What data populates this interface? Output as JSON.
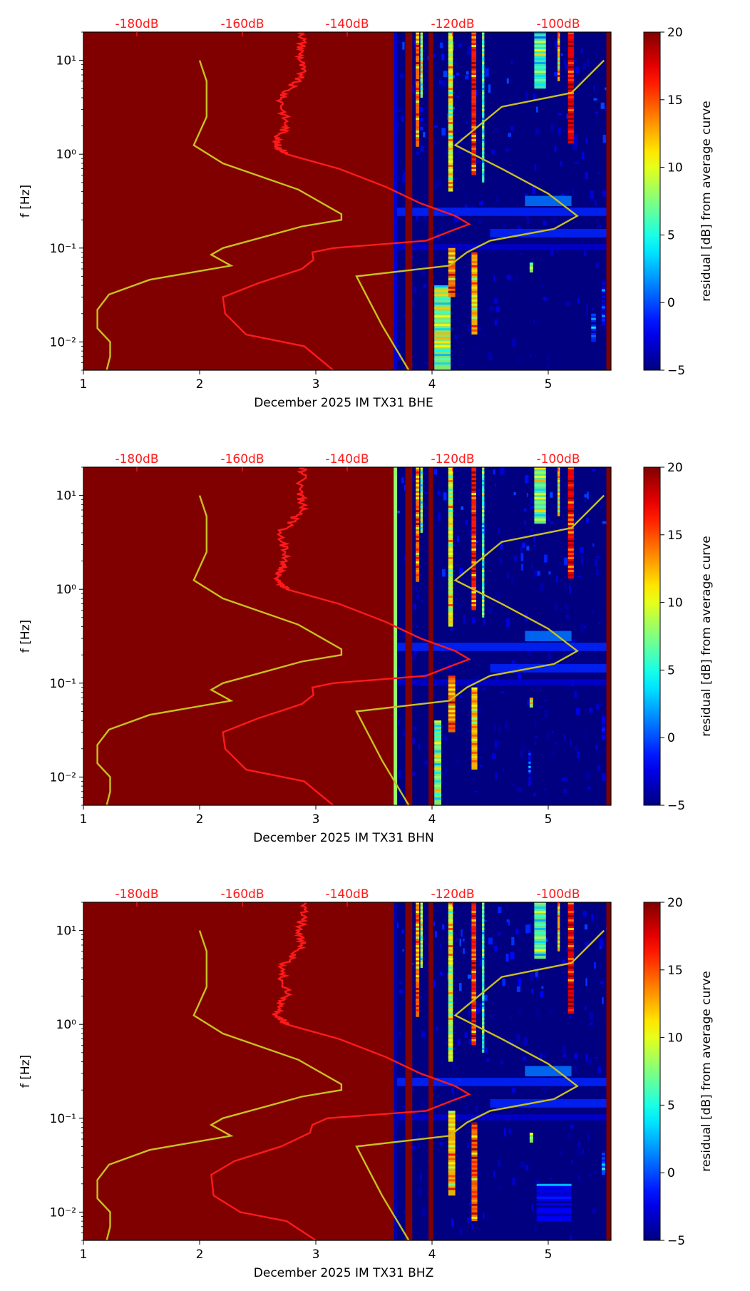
{
  "chart_data": [
    {
      "type": "heatmap",
      "xlabel": "December 2025 IM TX31  BHE",
      "ylabel": "f [Hz]",
      "x_ticks": [
        "1",
        "2",
        "3",
        "4",
        "5"
      ],
      "y_ticks": [
        "10^-2",
        "10^-1",
        "10^0",
        "10^1"
      ],
      "top_ticks": [
        "-180dB",
        "-160dB",
        "-140dB",
        "-120dB",
        "-100dB"
      ],
      "colorbar": {
        "label": "residual [dB] from average curve",
        "ticks": [
          "20",
          "15",
          "10",
          "5",
          "0",
          "−5"
        ],
        "range": [
          -5,
          20
        ]
      },
      "xlim": [
        1,
        5.54
      ],
      "ylim": [
        0.005,
        20
      ],
      "yscale": "log",
      "saturated_until_day": 3.67,
      "yellow_curve": [
        [
          2.0,
          10
        ],
        [
          2.06,
          6
        ],
        [
          2.06,
          2.5
        ],
        [
          1.95,
          1.25
        ],
        [
          2.2,
          0.8
        ],
        [
          2.85,
          0.42
        ],
        [
          3.22,
          0.23
        ],
        [
          3.22,
          0.2
        ],
        [
          2.88,
          0.17
        ],
        [
          2.2,
          0.1
        ],
        [
          2.1,
          0.085
        ],
        [
          2.27,
          0.065
        ],
        [
          1.57,
          0.046
        ],
        [
          1.22,
          0.032
        ],
        [
          1.12,
          0.022
        ],
        [
          1.12,
          0.014
        ],
        [
          1.23,
          0.01
        ],
        [
          1.23,
          0.007
        ],
        [
          1.2,
          0.005
        ]
      ],
      "yellow_curve_right": [
        [
          5.48,
          10
        ],
        [
          5.2,
          4.5
        ],
        [
          4.6,
          3.2
        ],
        [
          4.2,
          1.25
        ],
        [
          4.6,
          0.7
        ],
        [
          5.0,
          0.38
        ],
        [
          5.25,
          0.22
        ],
        [
          5.05,
          0.16
        ],
        [
          4.5,
          0.12
        ],
        [
          4.3,
          0.09
        ],
        [
          4.15,
          0.065
        ],
        [
          3.35,
          0.05
        ],
        [
          3.57,
          0.015
        ],
        [
          3.8,
          0.005
        ]
      ],
      "red_curve": [
        [
          2.9,
          20
        ],
        [
          2.87,
          12
        ],
        [
          2.88,
          7
        ],
        [
          2.7,
          4
        ],
        [
          2.75,
          2
        ],
        [
          2.65,
          1.3
        ],
        [
          2.75,
          1.0
        ],
        [
          3.2,
          0.7
        ],
        [
          3.6,
          0.45
        ],
        [
          3.9,
          0.3
        ],
        [
          4.2,
          0.22
        ],
        [
          4.32,
          0.18
        ],
        [
          4.15,
          0.15
        ],
        [
          3.95,
          0.12
        ],
        [
          3.15,
          0.1
        ],
        [
          2.97,
          0.09
        ],
        [
          2.98,
          0.075
        ],
        [
          2.88,
          0.06
        ],
        [
          2.5,
          0.042
        ],
        [
          2.2,
          0.03
        ],
        [
          2.22,
          0.02
        ],
        [
          2.4,
          0.012
        ],
        [
          2.9,
          0.009
        ],
        [
          3.15,
          0.005
        ]
      ],
      "bands": [
        {
          "x0": 3.77,
          "x1": 3.83,
          "value": 20
        },
        {
          "x0": 3.97,
          "x1": 4.01,
          "value": 20
        },
        {
          "x0": 5.5,
          "x1": 5.54,
          "value": 20
        },
        {
          "x0": 3.67,
          "x1": 3.7,
          "value": -3
        }
      ],
      "streaks": [
        {
          "x0": 3.86,
          "x1": 3.89,
          "f0": 1.2,
          "f1": 20,
          "value": 14
        },
        {
          "x0": 3.9,
          "x1": 3.92,
          "f0": 4,
          "f1": 20,
          "value": 8
        },
        {
          "x0": 4.14,
          "x1": 4.18,
          "f0": 0.4,
          "f1": 20,
          "value": 10
        },
        {
          "x0": 4.34,
          "x1": 4.38,
          "f0": 0.6,
          "f1": 20,
          "value": 16
        },
        {
          "x0": 4.43,
          "x1": 4.45,
          "f0": 0.5,
          "f1": 20,
          "value": 6
        },
        {
          "x0": 4.88,
          "x1": 4.98,
          "f0": 5,
          "f1": 20,
          "value": 6
        },
        {
          "x0": 5.08,
          "x1": 5.1,
          "f0": 6,
          "f1": 20,
          "value": 12
        },
        {
          "x0": 5.17,
          "x1": 5.22,
          "f0": 1.3,
          "f1": 20,
          "value": 17
        },
        {
          "x0": 4.02,
          "x1": 4.16,
          "f0": 0.005,
          "f1": 0.04,
          "value": 8
        },
        {
          "x0": 4.14,
          "x1": 4.2,
          "f0": 0.03,
          "f1": 0.1,
          "value": 14
        },
        {
          "x0": 4.34,
          "x1": 4.39,
          "f0": 0.012,
          "f1": 0.09,
          "value": 12
        },
        {
          "x0": 4.84,
          "x1": 4.87,
          "f0": 0.055,
          "f1": 0.07,
          "value": 8
        },
        {
          "x0": 5.37,
          "x1": 5.41,
          "f0": 0.01,
          "f1": 0.02,
          "value": -1
        },
        {
          "x0": 5.46,
          "x1": 5.49,
          "f0": 0.015,
          "f1": 0.045,
          "value": -2
        }
      ],
      "hbands": [
        {
          "x0": 3.67,
          "x1": 5.54,
          "f0": 0.22,
          "f1": 0.27,
          "value": -1
        },
        {
          "x0": 4.5,
          "x1": 5.54,
          "f0": 0.13,
          "f1": 0.16,
          "value": -1
        },
        {
          "x0": 3.67,
          "x1": 5.54,
          "f0": 0.095,
          "f1": 0.11,
          "value": -3
        },
        {
          "x0": 4.8,
          "x1": 5.2,
          "f0": 0.28,
          "f1": 0.36,
          "value": 1
        }
      ]
    },
    {
      "type": "heatmap",
      "xlabel": "December 2025 IM TX31  BHN",
      "ylabel": "f [Hz]",
      "x_ticks": [
        "1",
        "2",
        "3",
        "4",
        "5"
      ],
      "y_ticks": [
        "10^-2",
        "10^-1",
        "10^0",
        "10^1"
      ],
      "top_ticks": [
        "-180dB",
        "-160dB",
        "-140dB",
        "-120dB",
        "-100dB"
      ],
      "colorbar": {
        "label": "residual [dB] from average curve",
        "ticks": [
          "20",
          "15",
          "10",
          "5",
          "0",
          "−5"
        ],
        "range": [
          -5,
          20
        ]
      },
      "xlim": [
        1,
        5.54
      ],
      "ylim": [
        0.005,
        20
      ],
      "yscale": "log",
      "saturated_until_day": 3.67,
      "yellow_curve": [
        [
          2.0,
          10
        ],
        [
          2.06,
          6
        ],
        [
          2.06,
          2.5
        ],
        [
          1.95,
          1.25
        ],
        [
          2.2,
          0.8
        ],
        [
          2.85,
          0.42
        ],
        [
          3.22,
          0.23
        ],
        [
          3.22,
          0.2
        ],
        [
          2.88,
          0.17
        ],
        [
          2.2,
          0.1
        ],
        [
          2.1,
          0.085
        ],
        [
          2.27,
          0.065
        ],
        [
          1.57,
          0.046
        ],
        [
          1.22,
          0.032
        ],
        [
          1.12,
          0.022
        ],
        [
          1.12,
          0.014
        ],
        [
          1.23,
          0.01
        ],
        [
          1.23,
          0.007
        ],
        [
          1.2,
          0.005
        ]
      ],
      "yellow_curve_right": [
        [
          5.48,
          10
        ],
        [
          5.2,
          4.5
        ],
        [
          4.6,
          3.2
        ],
        [
          4.2,
          1.25
        ],
        [
          4.6,
          0.7
        ],
        [
          5.0,
          0.38
        ],
        [
          5.25,
          0.22
        ],
        [
          5.05,
          0.16
        ],
        [
          4.5,
          0.12
        ],
        [
          4.3,
          0.09
        ],
        [
          4.15,
          0.065
        ],
        [
          3.35,
          0.05
        ],
        [
          3.57,
          0.015
        ],
        [
          3.8,
          0.005
        ]
      ],
      "red_curve": [
        [
          2.9,
          20
        ],
        [
          2.87,
          12
        ],
        [
          2.88,
          7
        ],
        [
          2.7,
          4
        ],
        [
          2.75,
          2
        ],
        [
          2.65,
          1.3
        ],
        [
          2.75,
          1.0
        ],
        [
          3.2,
          0.7
        ],
        [
          3.6,
          0.45
        ],
        [
          3.9,
          0.3
        ],
        [
          4.2,
          0.22
        ],
        [
          4.32,
          0.18
        ],
        [
          4.15,
          0.15
        ],
        [
          3.95,
          0.12
        ],
        [
          3.15,
          0.1
        ],
        [
          2.97,
          0.09
        ],
        [
          2.98,
          0.075
        ],
        [
          2.88,
          0.06
        ],
        [
          2.5,
          0.042
        ],
        [
          2.2,
          0.03
        ],
        [
          2.22,
          0.02
        ],
        [
          2.4,
          0.012
        ],
        [
          2.9,
          0.009
        ],
        [
          3.15,
          0.005
        ]
      ],
      "bands": [
        {
          "x0": 3.77,
          "x1": 3.83,
          "value": 20
        },
        {
          "x0": 3.97,
          "x1": 4.01,
          "value": 20
        },
        {
          "x0": 5.5,
          "x1": 5.54,
          "value": 20
        },
        {
          "x0": 3.67,
          "x1": 3.7,
          "value": 8
        }
      ],
      "streaks": [
        {
          "x0": 3.86,
          "x1": 3.89,
          "f0": 1.2,
          "f1": 20,
          "value": 14
        },
        {
          "x0": 3.9,
          "x1": 3.92,
          "f0": 4,
          "f1": 20,
          "value": 8
        },
        {
          "x0": 4.14,
          "x1": 4.18,
          "f0": 0.4,
          "f1": 20,
          "value": 10
        },
        {
          "x0": 4.34,
          "x1": 4.38,
          "f0": 0.6,
          "f1": 20,
          "value": 16
        },
        {
          "x0": 4.43,
          "x1": 4.45,
          "f0": 0.5,
          "f1": 20,
          "value": 6
        },
        {
          "x0": 4.88,
          "x1": 4.98,
          "f0": 5,
          "f1": 20,
          "value": 7
        },
        {
          "x0": 5.08,
          "x1": 5.1,
          "f0": 6,
          "f1": 20,
          "value": 12
        },
        {
          "x0": 5.17,
          "x1": 5.22,
          "f0": 1.3,
          "f1": 20,
          "value": 17
        },
        {
          "x0": 4.02,
          "x1": 4.08,
          "f0": 0.005,
          "f1": 0.04,
          "value": 8
        },
        {
          "x0": 4.14,
          "x1": 4.2,
          "f0": 0.03,
          "f1": 0.12,
          "value": 14
        },
        {
          "x0": 4.34,
          "x1": 4.39,
          "f0": 0.012,
          "f1": 0.09,
          "value": 12
        },
        {
          "x0": 4.84,
          "x1": 4.87,
          "f0": 0.055,
          "f1": 0.07,
          "value": 8
        },
        {
          "x0": 4.83,
          "x1": 4.85,
          "f0": 0.008,
          "f1": 0.02,
          "value": -2
        },
        {
          "x0": 5.46,
          "x1": 5.49,
          "f0": 0.025,
          "f1": 0.045,
          "value": -2
        }
      ],
      "hbands": [
        {
          "x0": 3.67,
          "x1": 5.54,
          "f0": 0.22,
          "f1": 0.27,
          "value": -1
        },
        {
          "x0": 4.5,
          "x1": 5.54,
          "f0": 0.13,
          "f1": 0.16,
          "value": -1
        },
        {
          "x0": 3.67,
          "x1": 5.54,
          "f0": 0.095,
          "f1": 0.11,
          "value": -3
        },
        {
          "x0": 4.8,
          "x1": 5.2,
          "f0": 0.28,
          "f1": 0.36,
          "value": 1
        }
      ]
    },
    {
      "type": "heatmap",
      "xlabel": "December 2025 IM TX31  BHZ",
      "ylabel": "f [Hz]",
      "x_ticks": [
        "1",
        "2",
        "3",
        "4",
        "5"
      ],
      "y_ticks": [
        "10^-2",
        "10^-1",
        "10^0",
        "10^1"
      ],
      "top_ticks": [
        "-180dB",
        "-160dB",
        "-140dB",
        "-120dB",
        "-100dB"
      ],
      "colorbar": {
        "label": "residual [dB] from average curve",
        "ticks": [
          "20",
          "15",
          "10",
          "5",
          "0",
          "−5"
        ],
        "range": [
          -5,
          20
        ]
      },
      "xlim": [
        1,
        5.54
      ],
      "ylim": [
        0.005,
        20
      ],
      "yscale": "log",
      "saturated_until_day": 3.67,
      "yellow_curve": [
        [
          2.0,
          10
        ],
        [
          2.06,
          6
        ],
        [
          2.06,
          2.5
        ],
        [
          1.95,
          1.25
        ],
        [
          2.2,
          0.8
        ],
        [
          2.85,
          0.42
        ],
        [
          3.22,
          0.23
        ],
        [
          3.22,
          0.2
        ],
        [
          2.88,
          0.17
        ],
        [
          2.2,
          0.1
        ],
        [
          2.1,
          0.085
        ],
        [
          2.27,
          0.065
        ],
        [
          1.57,
          0.046
        ],
        [
          1.22,
          0.032
        ],
        [
          1.12,
          0.022
        ],
        [
          1.12,
          0.014
        ],
        [
          1.23,
          0.01
        ],
        [
          1.23,
          0.007
        ],
        [
          1.2,
          0.005
        ]
      ],
      "yellow_curve_right": [
        [
          5.48,
          10
        ],
        [
          5.2,
          4.5
        ],
        [
          4.6,
          3.2
        ],
        [
          4.2,
          1.25
        ],
        [
          4.6,
          0.7
        ],
        [
          5.0,
          0.38
        ],
        [
          5.25,
          0.22
        ],
        [
          5.05,
          0.16
        ],
        [
          4.5,
          0.12
        ],
        [
          4.3,
          0.09
        ],
        [
          4.15,
          0.065
        ],
        [
          3.35,
          0.05
        ],
        [
          3.57,
          0.015
        ],
        [
          3.8,
          0.005
        ]
      ],
      "red_curve": [
        [
          2.9,
          20
        ],
        [
          2.87,
          12
        ],
        [
          2.88,
          7
        ],
        [
          2.7,
          4
        ],
        [
          2.75,
          2
        ],
        [
          2.65,
          1.3
        ],
        [
          2.75,
          1.0
        ],
        [
          3.2,
          0.7
        ],
        [
          3.6,
          0.45
        ],
        [
          3.9,
          0.3
        ],
        [
          4.2,
          0.22
        ],
        [
          4.32,
          0.18
        ],
        [
          4.15,
          0.15
        ],
        [
          3.95,
          0.12
        ],
        [
          3.1,
          0.1
        ],
        [
          2.97,
          0.085
        ],
        [
          2.95,
          0.07
        ],
        [
          2.7,
          0.05
        ],
        [
          2.3,
          0.035
        ],
        [
          2.1,
          0.025
        ],
        [
          2.12,
          0.015
        ],
        [
          2.35,
          0.01
        ],
        [
          2.75,
          0.008
        ],
        [
          3.0,
          0.005
        ]
      ],
      "bands": [
        {
          "x0": 3.77,
          "x1": 3.83,
          "value": 20
        },
        {
          "x0": 3.97,
          "x1": 4.01,
          "value": 20
        },
        {
          "x0": 5.5,
          "x1": 5.54,
          "value": 20
        },
        {
          "x0": 3.67,
          "x1": 3.7,
          "value": -4
        }
      ],
      "streaks": [
        {
          "x0": 3.86,
          "x1": 3.89,
          "f0": 1.2,
          "f1": 20,
          "value": 14
        },
        {
          "x0": 3.9,
          "x1": 3.92,
          "f0": 4,
          "f1": 20,
          "value": 8
        },
        {
          "x0": 4.14,
          "x1": 4.18,
          "f0": 0.4,
          "f1": 20,
          "value": 10
        },
        {
          "x0": 4.34,
          "x1": 4.38,
          "f0": 0.6,
          "f1": 20,
          "value": 16
        },
        {
          "x0": 4.43,
          "x1": 4.45,
          "f0": 0.5,
          "f1": 20,
          "value": 6
        },
        {
          "x0": 4.88,
          "x1": 4.98,
          "f0": 5,
          "f1": 20,
          "value": 7
        },
        {
          "x0": 5.08,
          "x1": 5.1,
          "f0": 6,
          "f1": 20,
          "value": 12
        },
        {
          "x0": 5.17,
          "x1": 5.22,
          "f0": 1.3,
          "f1": 20,
          "value": 17
        },
        {
          "x0": 4.14,
          "x1": 4.2,
          "f0": 0.015,
          "f1": 0.12,
          "value": 12
        },
        {
          "x0": 4.34,
          "x1": 4.39,
          "f0": 0.008,
          "f1": 0.09,
          "value": 14
        },
        {
          "x0": 4.84,
          "x1": 4.87,
          "f0": 0.055,
          "f1": 0.07,
          "value": 8
        },
        {
          "x0": 4.9,
          "x1": 5.2,
          "f0": 0.008,
          "f1": 0.02,
          "value": -2
        },
        {
          "x0": 5.46,
          "x1": 5.49,
          "f0": 0.025,
          "f1": 0.045,
          "value": 0
        }
      ],
      "hbands": [
        {
          "x0": 3.67,
          "x1": 5.54,
          "f0": 0.22,
          "f1": 0.27,
          "value": -1
        },
        {
          "x0": 4.5,
          "x1": 5.54,
          "f0": 0.13,
          "f1": 0.16,
          "value": -1
        },
        {
          "x0": 3.67,
          "x1": 5.54,
          "f0": 0.095,
          "f1": 0.11,
          "value": -3
        },
        {
          "x0": 4.8,
          "x1": 5.2,
          "f0": 0.28,
          "f1": 0.36,
          "value": 1
        }
      ]
    }
  ]
}
